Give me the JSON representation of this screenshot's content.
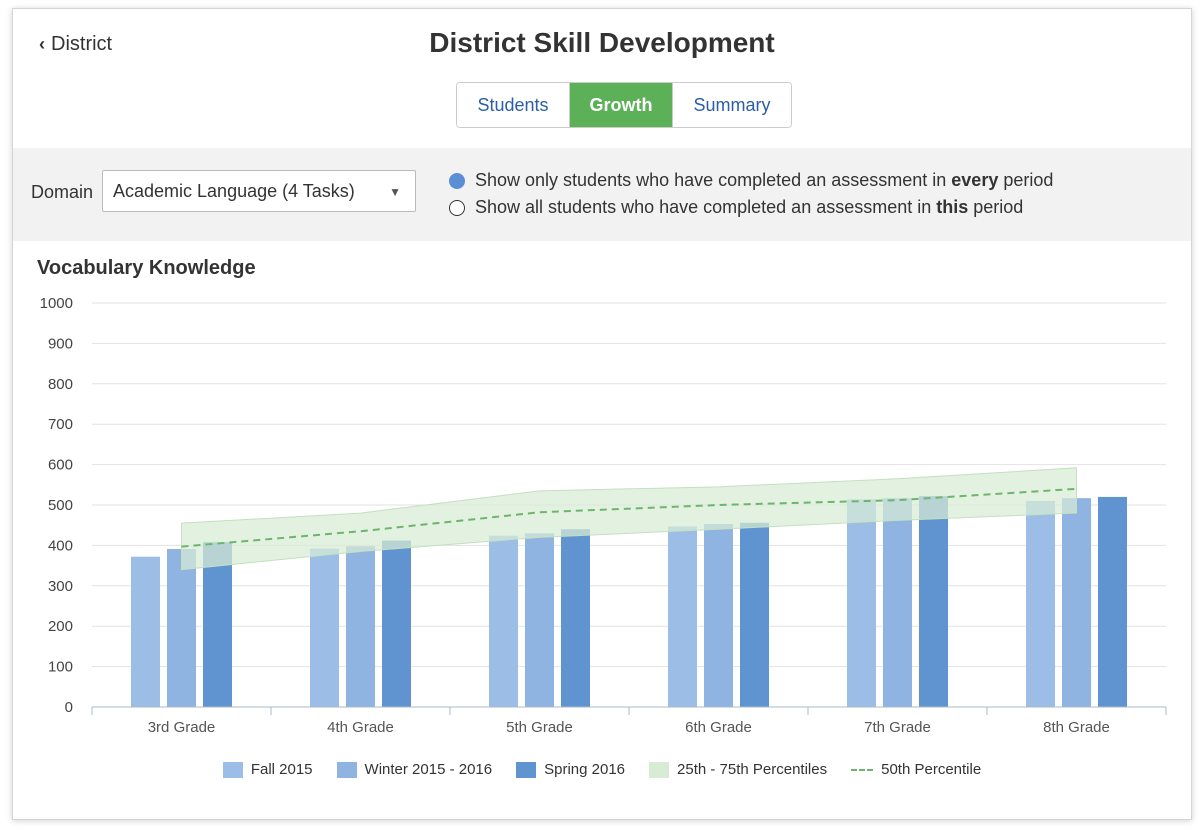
{
  "header": {
    "back_label": "District",
    "title": "District Skill Development",
    "tabs": [
      {
        "label": "Students",
        "active": false
      },
      {
        "label": "Growth",
        "active": true
      },
      {
        "label": "Summary",
        "active": false
      }
    ]
  },
  "filters": {
    "domain_label": "Domain",
    "domain_value": "Academic Language (4 Tasks)",
    "options": [
      {
        "prefix": "Show only students who have completed an assessment in ",
        "emph": "every",
        "suffix": " period",
        "selected": true
      },
      {
        "prefix": "Show all students who have completed an assessment in ",
        "emph": "this",
        "suffix": " period",
        "selected": false
      }
    ]
  },
  "colors": {
    "accent_green": "#5cb158",
    "link_blue": "#2b5ea7",
    "fall": "#9bbde6",
    "winter": "#8fb4e2",
    "spring": "#6094d0",
    "band": "#d8ecd5",
    "median": "#6db56a"
  },
  "chart_data": {
    "type": "bar",
    "title": "Vocabulary Knowledge",
    "ylim": [
      0,
      1000
    ],
    "yticks": [
      0,
      100,
      200,
      300,
      400,
      500,
      600,
      700,
      800,
      900,
      1000
    ],
    "categories": [
      "3rd Grade",
      "4th Grade",
      "5th Grade",
      "6th Grade",
      "7th Grade",
      "8th Grade"
    ],
    "series": [
      {
        "name": "Fall 2015",
        "values": [
          372,
          392,
          424,
          447,
          514,
          510
        ]
      },
      {
        "name": "Winter 2015 - 2016",
        "values": [
          391,
          398,
          430,
          453,
          517,
          517
        ]
      },
      {
        "name": "Spring 2016",
        "values": [
          408,
          412,
          440,
          456,
          522,
          520
        ]
      }
    ],
    "percentile_band": {
      "name": "25th - 75th Percentiles",
      "low": [
        340,
        385,
        420,
        440,
        462,
        480
      ],
      "high": [
        455,
        480,
        535,
        545,
        565,
        592
      ]
    },
    "median": {
      "name": "50th Percentile",
      "values": [
        397,
        435,
        482,
        500,
        512,
        540
      ]
    },
    "grid": true,
    "legend": "bottom"
  }
}
